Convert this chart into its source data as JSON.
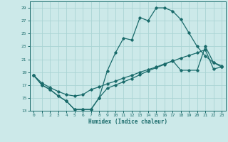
{
  "xlabel": "Humidex (Indice chaleur)",
  "background_color": "#cce9e9",
  "grid_color": "#aad4d4",
  "line_color": "#1a6b6b",
  "xlim": [
    -0.5,
    23.5
  ],
  "ylim": [
    13,
    30
  ],
  "yticks": [
    13,
    15,
    17,
    19,
    21,
    23,
    25,
    27,
    29
  ],
  "xticks": [
    0,
    1,
    2,
    3,
    4,
    5,
    6,
    7,
    8,
    9,
    10,
    11,
    12,
    13,
    14,
    15,
    16,
    17,
    18,
    19,
    20,
    21,
    22,
    23
  ],
  "line1_x": [
    0,
    1,
    2,
    3,
    4,
    5,
    6,
    7,
    8,
    9,
    10,
    11,
    12,
    13,
    14,
    15,
    16,
    17,
    18,
    19,
    20,
    21,
    22,
    23
  ],
  "line1_y": [
    18.5,
    17.0,
    16.3,
    15.3,
    14.5,
    13.2,
    13.2,
    13.2,
    15.0,
    19.2,
    22.0,
    24.3,
    24.0,
    27.5,
    27.0,
    29.0,
    29.0,
    28.5,
    27.2,
    25.1,
    23.0,
    21.5,
    20.5,
    20.0
  ],
  "line2_x": [
    0,
    1,
    2,
    3,
    4,
    5,
    6,
    7,
    8,
    9,
    10,
    11,
    12,
    13,
    14,
    15,
    16,
    17,
    18,
    19,
    20,
    21,
    22,
    23
  ],
  "line2_y": [
    18.5,
    17.3,
    16.6,
    16.0,
    15.5,
    15.3,
    15.5,
    16.3,
    16.7,
    17.2,
    17.6,
    18.1,
    18.5,
    19.0,
    19.4,
    19.8,
    20.3,
    20.7,
    21.2,
    21.6,
    22.0,
    22.5,
    19.5,
    19.8
  ],
  "line3_x": [
    0,
    1,
    2,
    3,
    4,
    5,
    6,
    7,
    8,
    9,
    10,
    11,
    12,
    13,
    14,
    15,
    16,
    17,
    18,
    19,
    20,
    21,
    22,
    23
  ],
  "line3_y": [
    18.5,
    17.0,
    16.3,
    15.3,
    14.5,
    13.2,
    13.2,
    13.2,
    15.0,
    16.5,
    17.0,
    17.5,
    18.0,
    18.6,
    19.2,
    19.7,
    20.2,
    20.8,
    19.3,
    19.3,
    19.3,
    23.0,
    20.5,
    19.8
  ]
}
